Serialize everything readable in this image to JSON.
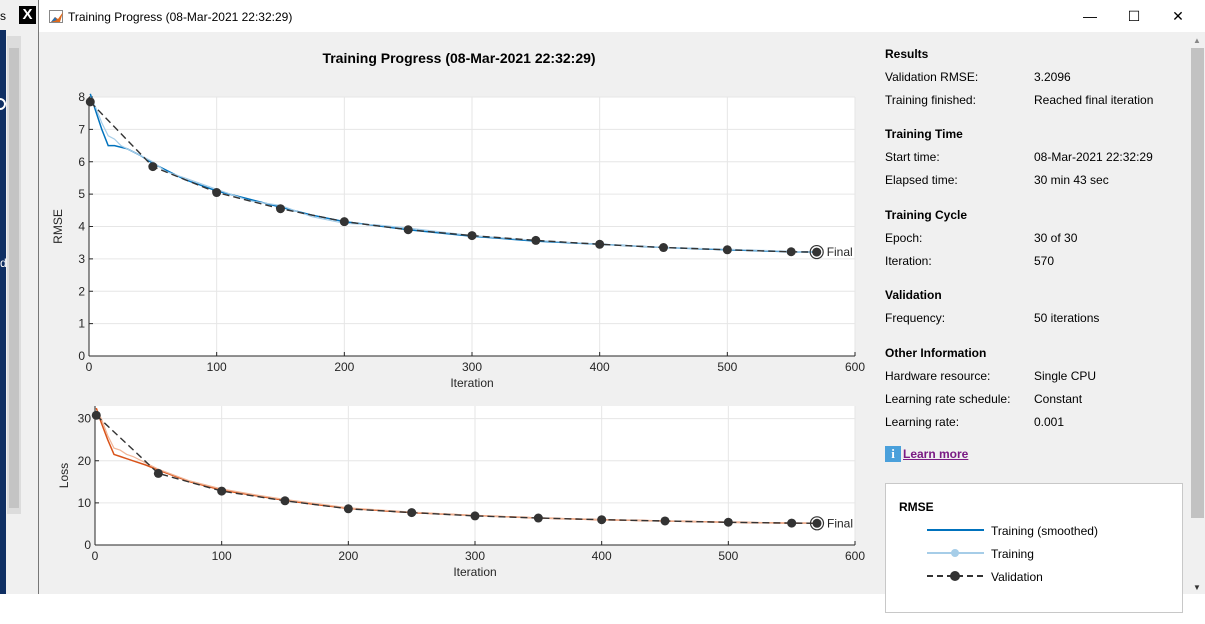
{
  "background": {
    "left_letter_top": "s",
    "left_letter_mid": "d",
    "taskbar_icon": "X"
  },
  "window": {
    "title": "Training Progress (08-Mar-2021 22:32:29)",
    "minimize_symbol": "—",
    "maximize_symbol": "☐",
    "close_symbol": "✕"
  },
  "figure_title": "Training Progress (08-Mar-2021 22:32:29)",
  "chart_data": [
    {
      "type": "line",
      "ylabel": "RMSE",
      "xlabel": "Iteration",
      "xlim": [
        0,
        600
      ],
      "ylim": [
        0,
        8
      ],
      "x_ticks": [
        0,
        100,
        200,
        300,
        400,
        500,
        600
      ],
      "y_ticks": [
        0,
        1,
        2,
        3,
        4,
        5,
        6,
        7,
        8
      ],
      "grid": true,
      "final_label": "Final",
      "series": [
        {
          "name": "Training (smoothed)",
          "color": "#0072bd",
          "x": [
            1,
            5,
            10,
            15,
            20,
            30,
            40,
            50,
            75,
            100,
            125,
            150,
            175,
            200,
            250,
            300,
            350,
            400,
            450,
            500,
            550,
            570
          ],
          "y": [
            8.1,
            7.6,
            7.0,
            6.5,
            6.5,
            6.4,
            6.2,
            5.95,
            5.45,
            5.1,
            4.85,
            4.6,
            4.35,
            4.15,
            3.9,
            3.7,
            3.55,
            3.45,
            3.35,
            3.28,
            3.22,
            3.21
          ]
        },
        {
          "name": "Training",
          "color": "#a6cde8",
          "x": [
            1,
            5,
            10,
            15,
            20,
            25,
            30,
            40,
            50,
            60,
            75,
            100,
            125,
            150,
            175,
            200,
            225,
            250,
            300,
            350,
            400,
            450,
            500,
            550,
            570
          ],
          "y": [
            8.0,
            7.7,
            7.2,
            6.8,
            6.7,
            6.5,
            6.4,
            6.2,
            6.0,
            5.7,
            5.5,
            5.15,
            4.8,
            4.65,
            4.3,
            4.1,
            4.05,
            3.95,
            3.72,
            3.57,
            3.45,
            3.35,
            3.3,
            3.23,
            3.2
          ]
        },
        {
          "name": "Validation",
          "color": "#333333",
          "x": [
            1,
            50,
            100,
            150,
            200,
            250,
            300,
            350,
            400,
            450,
            500,
            550,
            570
          ],
          "y": [
            7.85,
            5.85,
            5.05,
            4.55,
            4.15,
            3.9,
            3.72,
            3.57,
            3.45,
            3.35,
            3.28,
            3.22,
            3.21
          ]
        }
      ]
    },
    {
      "type": "line",
      "ylabel": "Loss",
      "xlabel": "Iteration",
      "xlim": [
        0,
        600
      ],
      "ylim": [
        0,
        33
      ],
      "x_ticks": [
        0,
        100,
        200,
        300,
        400,
        500,
        600
      ],
      "y_ticks": [
        0,
        10,
        20,
        30
      ],
      "grid": true,
      "final_label": "Final",
      "series": [
        {
          "name": "Training (smoothed)",
          "color": "#d95319",
          "x": [
            1,
            5,
            10,
            15,
            20,
            30,
            40,
            50,
            75,
            100,
            125,
            150,
            175,
            200,
            250,
            300,
            350,
            400,
            450,
            500,
            550,
            570
          ],
          "y": [
            32.5,
            29.0,
            25.0,
            21.5,
            21.0,
            20.0,
            19.0,
            17.8,
            15.0,
            13.0,
            11.8,
            10.6,
            9.6,
            8.7,
            7.7,
            7.0,
            6.4,
            6.0,
            5.7,
            5.4,
            5.2,
            5.15
          ]
        },
        {
          "name": "Training",
          "color": "#f0b597",
          "x": [
            1,
            5,
            10,
            15,
            20,
            25,
            30,
            40,
            50,
            75,
            100,
            125,
            150,
            200,
            250,
            300,
            350,
            400,
            450,
            500,
            550,
            570
          ],
          "y": [
            32.0,
            30.0,
            26.0,
            23.0,
            22.5,
            21.5,
            21.0,
            19.5,
            18.0,
            15.2,
            13.3,
            12.0,
            10.8,
            8.8,
            7.8,
            7.0,
            6.4,
            6.0,
            5.7,
            5.4,
            5.2,
            5.1
          ]
        },
        {
          "name": "Validation",
          "color": "#333333",
          "x": [
            1,
            50,
            100,
            150,
            200,
            250,
            300,
            350,
            400,
            450,
            500,
            550,
            570
          ],
          "y": [
            30.8,
            17.0,
            12.8,
            10.5,
            8.6,
            7.7,
            6.9,
            6.4,
            6.0,
            5.7,
            5.4,
            5.2,
            5.15
          ]
        }
      ]
    }
  ],
  "panel": {
    "results": {
      "heading": "Results",
      "val_rmse_label": "Validation RMSE:",
      "val_rmse": "3.2096",
      "finished_label": "Training finished:",
      "finished": "Reached final iteration"
    },
    "time": {
      "heading": "Training Time",
      "start_label": "Start time:",
      "start": "08-Mar-2021 22:32:29",
      "elapsed_label": "Elapsed time:",
      "elapsed": "30 min 43 sec"
    },
    "cycle": {
      "heading": "Training Cycle",
      "epoch_label": "Epoch:",
      "epoch": "30 of 30",
      "iter_label": "Iteration:",
      "iter": "570"
    },
    "validation": {
      "heading": "Validation",
      "freq_label": "Frequency:",
      "freq": "50 iterations"
    },
    "other": {
      "heading": "Other Information",
      "hw_label": "Hardware resource:",
      "hw": "Single CPU",
      "sched_label": "Learning rate schedule:",
      "sched": "Constant",
      "lr_label": "Learning rate:",
      "lr": "0.001"
    },
    "learn_more": "Learn more",
    "info_glyph": "i"
  },
  "legend": {
    "heading": "RMSE",
    "items": [
      "Training (smoothed)",
      "Training",
      "Validation"
    ],
    "colors": [
      "#0072bd",
      "#a6cde8",
      "#333333"
    ]
  }
}
